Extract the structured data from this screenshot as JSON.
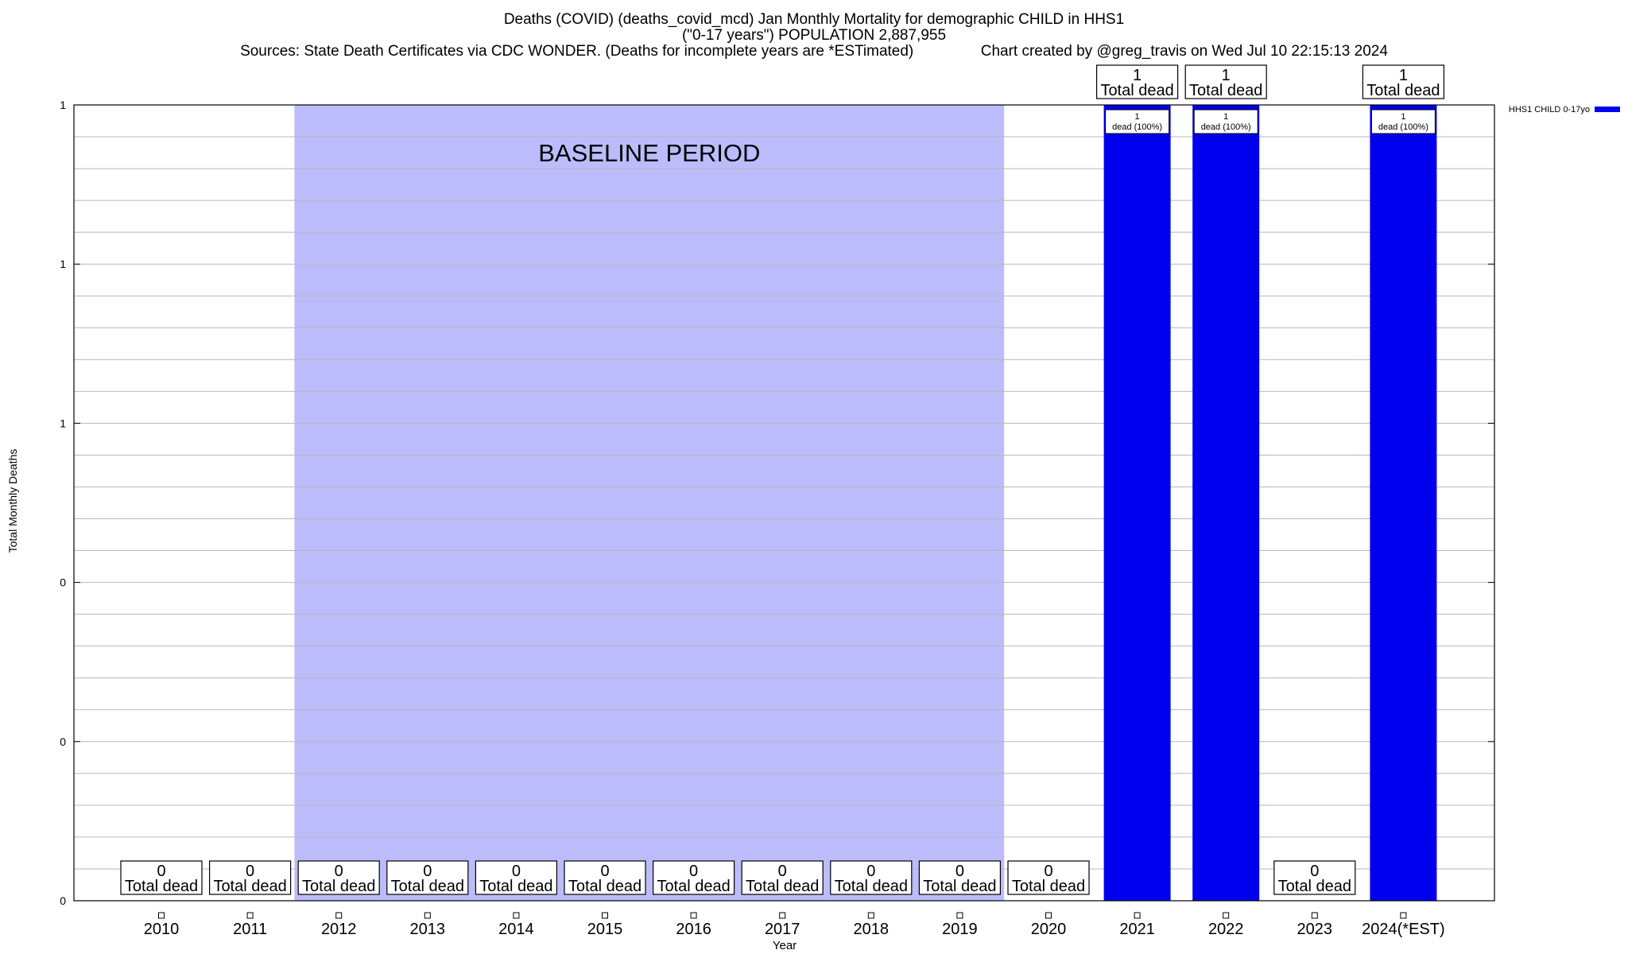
{
  "title": {
    "line1": "Deaths (COVID) (deaths_covid_mcd) Jan Monthly Mortality for demographic CHILD in HHS1",
    "line2": "(\"0-17 years\") POPULATION 2,887,955",
    "line3": "Sources: State Death Certificates via CDC WONDER. (Deaths for incomplete years are *ESTimated)                Chart created by @greg_travis on Wed Jul 10 22:15:13 2024"
  },
  "colors": {
    "bar": "#0000ee",
    "baseline": "#bcbcfc",
    "grid": "#b8b8b8"
  },
  "chart_data": {
    "type": "bar",
    "xlabel": "Year",
    "ylabel": "Total Monthly Deaths",
    "ylim": [
      0,
      1
    ],
    "ytick_labels": [
      "0",
      "0",
      "0",
      "1",
      "1",
      "1"
    ],
    "grid": true,
    "legend_position": "top-right",
    "baseline_label": "BASELINE PERIOD",
    "baseline_range": [
      "2012",
      "2019"
    ],
    "categories": [
      "2010",
      "2011",
      "2012",
      "2013",
      "2014",
      "2015",
      "2016",
      "2017",
      "2018",
      "2019",
      "2020",
      "2021",
      "2022",
      "2023",
      "2024(*EST)"
    ],
    "series": [
      {
        "name": "HHS1 CHILD 0-17yo",
        "values": [
          0,
          0,
          0,
          0,
          0,
          0,
          0,
          0,
          0,
          0,
          0,
          1,
          1,
          0,
          1
        ]
      }
    ],
    "total_labels": [
      "0",
      "0",
      "0",
      "0",
      "0",
      "0",
      "0",
      "0",
      "0",
      "0",
      "0",
      "1",
      "1",
      "0",
      "1"
    ],
    "total_suffix": "Total dead",
    "bar_labels": [
      "",
      "",
      "",
      "",
      "",
      "",
      "",
      "",
      "",
      "",
      "",
      "1|dead (100%)",
      "1|dead (100%)",
      "",
      "1|dead (100%)"
    ]
  }
}
